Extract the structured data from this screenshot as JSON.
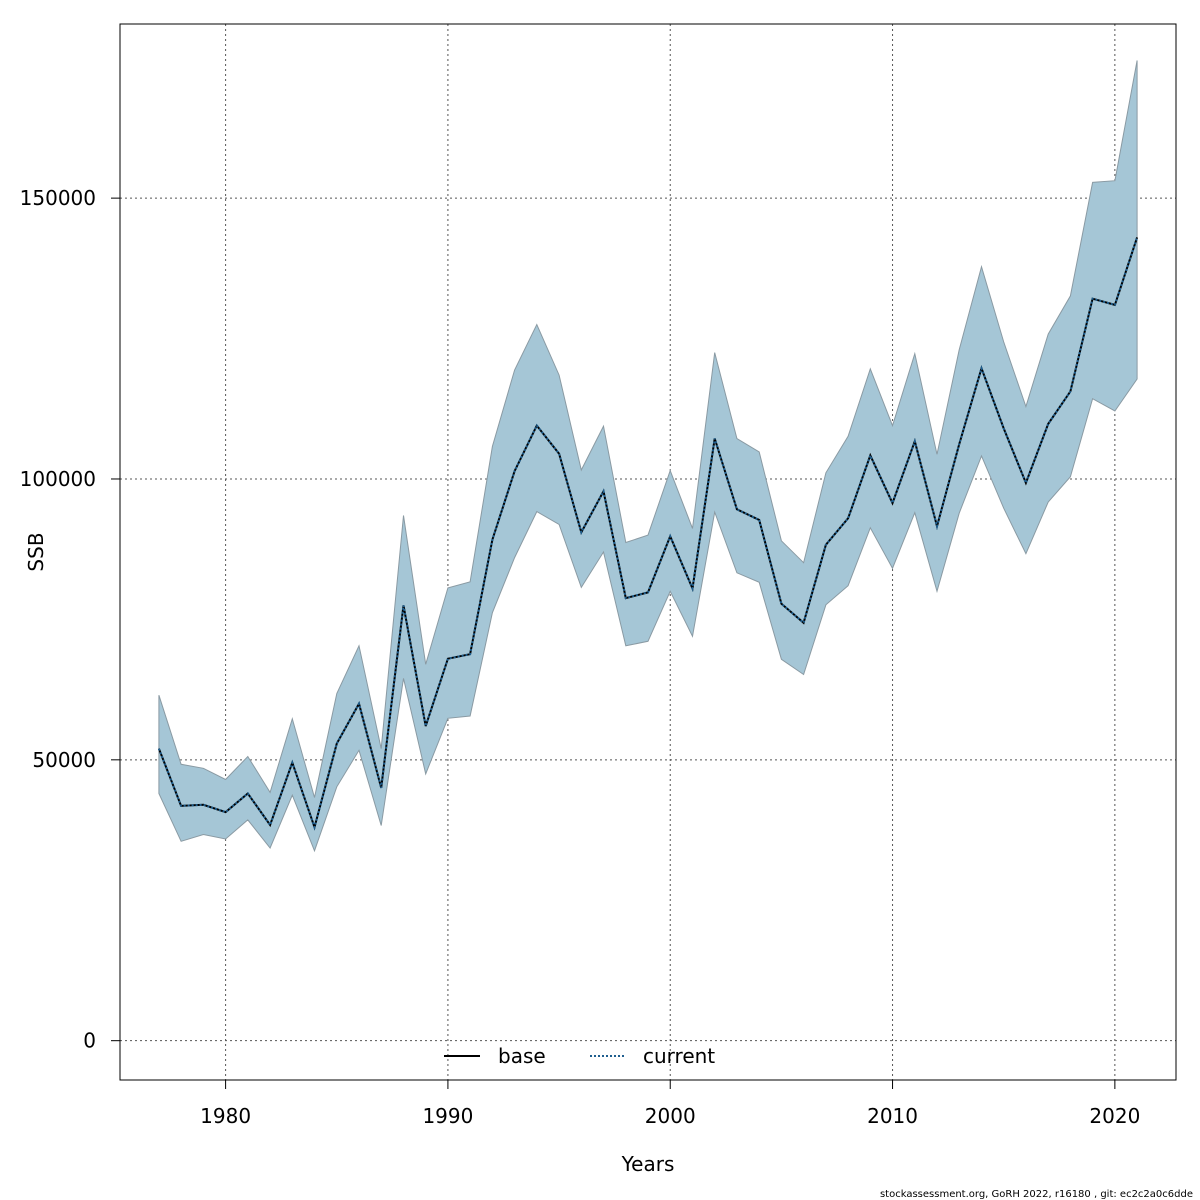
{
  "chart_data": {
    "type": "line",
    "xlabel": "Years",
    "ylabel": "SSB",
    "xlim": [
      1975.3,
      1977.0
    ],
    "ylim": [
      -7000,
      181000
    ],
    "x_ticks": [
      1980,
      1990,
      2000,
      2010,
      2020
    ],
    "y_ticks": [
      0,
      50000,
      100000,
      150000
    ],
    "x_tick_labels": [
      "1980",
      "1990",
      "2000",
      "2010",
      "2020"
    ],
    "y_tick_labels": [
      "0",
      "50000",
      "100000",
      "150000"
    ],
    "grid": true,
    "legend_position": "bottom-center",
    "band_color": "#a5c6d6",
    "band_edge_color": "#8a9aa3",
    "colors": {
      "base": "#000000",
      "current": "#1f5f8f"
    },
    "x": [
      1977,
      1978,
      1979,
      1980,
      1981,
      1982,
      1983,
      1984,
      1985,
      1986,
      1987,
      1988,
      1989,
      1990,
      1991,
      1992,
      1993,
      1994,
      1995,
      1996,
      1997,
      1998,
      1999,
      2000,
      2001,
      2002,
      2003,
      2004,
      2005,
      2006,
      2007,
      2008,
      2009,
      2010,
      2011,
      2012,
      2013,
      2014,
      2015,
      2016,
      2017,
      2018,
      2019,
      2020,
      2021
    ],
    "series": [
      {
        "name": "base",
        "style": "solid",
        "values": [
          52000,
          41800,
          42000,
          40700,
          44000,
          38400,
          49500,
          38000,
          52900,
          60000,
          45000,
          77500,
          56000,
          68000,
          68800,
          89200,
          101400,
          109500,
          104500,
          90500,
          97800,
          78800,
          79800,
          89800,
          80500,
          107200,
          94600,
          92700,
          77800,
          74400,
          88300,
          93000,
          104200,
          95700,
          106700,
          91600,
          106200,
          119700,
          109000,
          99300,
          109800,
          115600,
          132100,
          131000,
          143000
        ]
      },
      {
        "name": "current",
        "style": "dotted",
        "values": [
          52000,
          41800,
          42000,
          40700,
          44000,
          38400,
          49500,
          38000,
          52900,
          60000,
          45000,
          77500,
          56000,
          68000,
          68800,
          89200,
          101400,
          109500,
          104500,
          90500,
          97800,
          78800,
          79800,
          89800,
          80500,
          107200,
          94600,
          92700,
          77800,
          74400,
          88300,
          93000,
          104200,
          95700,
          106700,
          91600,
          106200,
          119700,
          109000,
          99300,
          109800,
          115600,
          132100,
          131000,
          143000
        ]
      }
    ],
    "lower": [
      44000,
      35500,
      36700,
      35900,
      39300,
      34300,
      43700,
      33800,
      45200,
      51700,
      38300,
      64500,
      47500,
      57400,
      57800,
      76200,
      86000,
      94200,
      91900,
      80700,
      87000,
      70300,
      71100,
      80000,
      72000,
      94100,
      83300,
      81600,
      67900,
      65200,
      77600,
      81000,
      91300,
      84100,
      94000,
      80000,
      93900,
      104100,
      94800,
      86700,
      95900,
      100400,
      114300,
      112100,
      117800
    ],
    "upper": [
      61500,
      49200,
      48500,
      46500,
      50600,
      44200,
      57300,
      43300,
      61800,
      70300,
      52000,
      93500,
      67000,
      80600,
      81700,
      105800,
      119400,
      127500,
      118500,
      101600,
      109400,
      88700,
      90000,
      101500,
      91200,
      122500,
      107200,
      104800,
      89000,
      85100,
      101100,
      107600,
      119600,
      109500,
      122300,
      104400,
      123000,
      137800,
      124400,
      112900,
      125800,
      132600,
      152800,
      153100,
      174500
    ],
    "legend": [
      "base",
      "current"
    ],
    "footer": "stockassessment.org, GoRH  2022, r16180 , git: ec2c2a0c6dde"
  }
}
